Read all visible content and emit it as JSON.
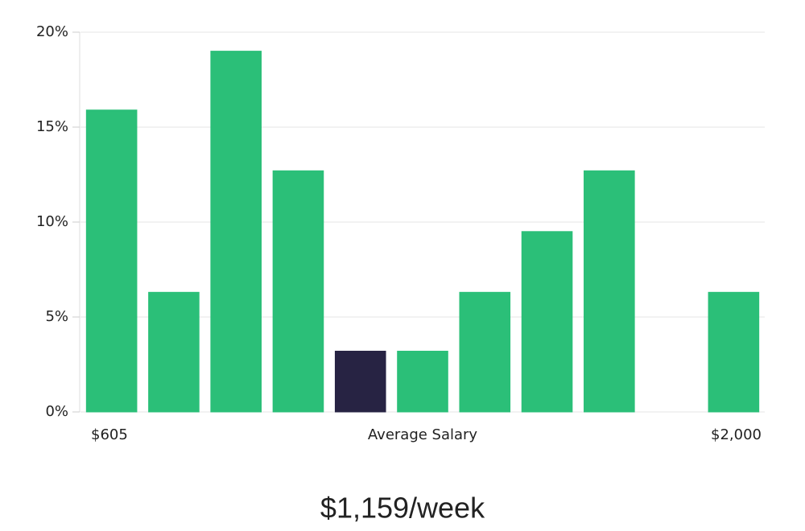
{
  "chart_data": {
    "type": "bar",
    "values": [
      15.9,
      6.3,
      19.0,
      12.7,
      3.2,
      3.2,
      6.3,
      9.5,
      12.7,
      0,
      6.3
    ],
    "colors": [
      "#2bbf78",
      "#2bbf78",
      "#2bbf78",
      "#2bbf78",
      "#272343",
      "#2bbf78",
      "#2bbf78",
      "#2bbf78",
      "#2bbf78",
      "#2bbf78",
      "#2bbf78"
    ],
    "ylim": [
      0,
      20
    ],
    "yticks": [
      {
        "value": 0,
        "label": "0%"
      },
      {
        "value": 5,
        "label": "5%"
      },
      {
        "value": 10,
        "label": "10%"
      },
      {
        "value": 15,
        "label": "15%"
      },
      {
        "value": 20,
        "label": "20%"
      }
    ],
    "grid": true,
    "x_start_label": "$605",
    "xlabel": "Average Salary",
    "x_end_label": "$2,000",
    "summary": "$1,159/week"
  }
}
